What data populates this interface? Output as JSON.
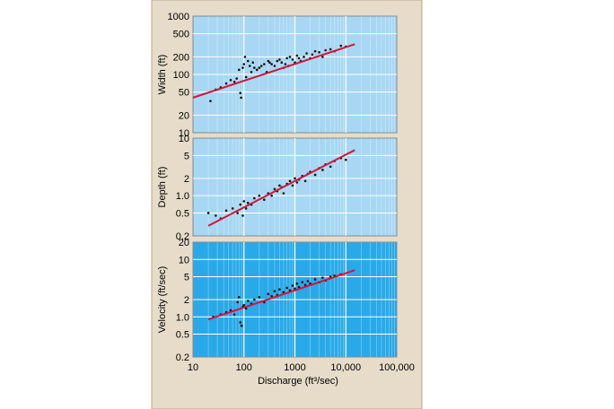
{
  "chart_data": [
    {
      "type": "scatter",
      "panel": "width",
      "ylabel": "Width (ft)",
      "yscale": "log",
      "xscale": "log",
      "ylim": [
        10,
        1000
      ],
      "xlim": [
        10,
        100000
      ],
      "yticks": [
        "1000",
        "500",
        "200",
        "100",
        "50",
        "20",
        "10"
      ],
      "ytick_values": [
        1000,
        500,
        200,
        100,
        50,
        20,
        10
      ],
      "panel_color": "#a7d7f3",
      "trend": {
        "x": [
          10,
          15000
        ],
        "y": [
          40,
          330
        ],
        "color": "#d4143c"
      },
      "x": [
        22,
        28,
        35,
        45,
        55,
        65,
        72,
        80,
        85,
        88,
        95,
        100,
        105,
        110,
        120,
        130,
        140,
        150,
        160,
        180,
        200,
        220,
        250,
        280,
        300,
        320,
        350,
        400,
        450,
        500,
        550,
        600,
        650,
        700,
        750,
        800,
        900,
        1000,
        1100,
        1200,
        1300,
        1500,
        1700,
        2000,
        2200,
        2500,
        3000,
        3500,
        4000,
        5000,
        6000,
        8000,
        10000
      ],
      "y": [
        35,
        55,
        60,
        70,
        80,
        75,
        85,
        120,
        48,
        40,
        130,
        150,
        200,
        90,
        170,
        140,
        110,
        160,
        130,
        120,
        130,
        140,
        150,
        110,
        170,
        160,
        150,
        140,
        170,
        180,
        160,
        130,
        150,
        190,
        140,
        200,
        180,
        160,
        210,
        190,
        170,
        200,
        230,
        190,
        220,
        250,
        240,
        200,
        260,
        270,
        250,
        310,
        300
      ]
    },
    {
      "type": "scatter",
      "panel": "depth",
      "ylabel": "Depth (ft)",
      "yscale": "log",
      "xscale": "log",
      "ylim": [
        0.2,
        10
      ],
      "xlim": [
        10,
        100000
      ],
      "yticks": [
        "10",
        "5",
        "2",
        "1.0",
        "0.5",
        "0.2"
      ],
      "ytick_values": [
        10,
        5,
        2,
        1.0,
        0.5,
        0.2
      ],
      "panel_color": "#a7d7f3",
      "trend": {
        "x": [
          20,
          15000
        ],
        "y": [
          0.3,
          6.2
        ],
        "color": "#d4143c"
      },
      "x": [
        20,
        28,
        35,
        45,
        60,
        75,
        85,
        95,
        100,
        110,
        120,
        140,
        160,
        200,
        250,
        300,
        350,
        400,
        450,
        500,
        550,
        600,
        700,
        800,
        900,
        1000,
        1100,
        1200,
        1400,
        1600,
        1800,
        2000,
        2500,
        3000,
        3500,
        4000,
        5000,
        6000,
        8000,
        10000
      ],
      "y": [
        0.5,
        0.45,
        0.4,
        0.55,
        0.6,
        0.5,
        0.7,
        0.45,
        0.8,
        0.6,
        0.75,
        0.7,
        0.9,
        1.0,
        0.85,
        1.1,
        1.0,
        1.3,
        1.2,
        1.5,
        1.4,
        1.1,
        1.6,
        1.8,
        1.5,
        2.0,
        1.7,
        1.9,
        2.2,
        1.8,
        2.4,
        2.6,
        2.3,
        3.0,
        2.8,
        3.5,
        3.2,
        4.0,
        4.5,
        4.2
      ]
    },
    {
      "type": "scatter",
      "panel": "velocity",
      "ylabel": "Velocity (ft/sec)",
      "xlabel": "Discharge (ft³/sec)",
      "yscale": "log",
      "xscale": "log",
      "ylim": [
        0.2,
        20
      ],
      "xlim": [
        10,
        100000
      ],
      "yticks": [
        "20",
        "10",
        "5",
        "2",
        "1.0",
        "0.5",
        "0.2"
      ],
      "ytick_values": [
        20,
        10,
        5,
        2,
        1.0,
        0.5,
        0.2
      ],
      "xticks": [
        "10",
        "100",
        "1000",
        "10,000",
        "100,000"
      ],
      "xtick_values": [
        10,
        100,
        1000,
        10000,
        100000
      ],
      "panel_color": "#29a9e8",
      "trend": {
        "x": [
          20,
          15000
        ],
        "y": [
          0.9,
          6.5
        ],
        "color": "#d4143c"
      },
      "x": [
        25,
        35,
        45,
        55,
        65,
        75,
        80,
        85,
        90,
        95,
        100,
        110,
        120,
        140,
        160,
        200,
        250,
        300,
        350,
        400,
        450,
        500,
        600,
        700,
        800,
        900,
        1000,
        1100,
        1200,
        1400,
        1600,
        1800,
        2000,
        2500,
        3000,
        3500,
        4000,
        5000,
        6000,
        8000
      ],
      "y": [
        1.0,
        1.1,
        1.2,
        1.3,
        1.1,
        1.8,
        2.2,
        0.8,
        0.7,
        1.5,
        1.6,
        1.4,
        1.9,
        1.7,
        2.0,
        2.2,
        1.8,
        2.5,
        2.3,
        2.8,
        2.4,
        3.0,
        2.7,
        3.2,
        2.9,
        3.5,
        3.1,
        3.8,
        3.3,
        4.0,
        3.6,
        4.2,
        3.8,
        4.5,
        4.0,
        4.8,
        4.3,
        5.0,
        5.2,
        5.5
      ]
    }
  ]
}
